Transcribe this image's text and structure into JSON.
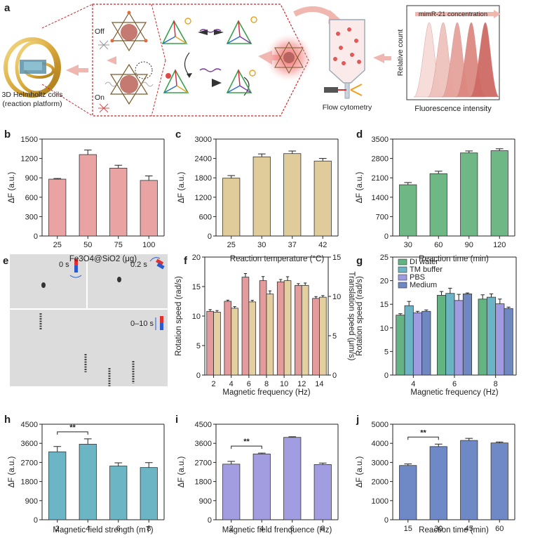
{
  "panel_a": {
    "label": "a",
    "coil_caption_1": "3D Helmholtz coils",
    "coil_caption_2": "(reaction platform)",
    "off_label": "Off",
    "on_label": "On",
    "flow_label": "Flow cytometry",
    "hist_arrow_label": "mimR-21 concentration",
    "hist_ylabel": "Relative count",
    "hist_xlabel": "Fluorescence intensity",
    "colors": {
      "dashed_red": "#c8282d",
      "arrow": "#f0b7b1",
      "hist": [
        "#f6dcd8",
        "#efc2bc",
        "#e6a39c",
        "#dc8880",
        "#cf6a65"
      ]
    }
  },
  "panel_e": {
    "label": "e",
    "t1": "0 s",
    "t2": "0.2 s",
    "t3": "0–10 s"
  },
  "chart_data": [
    {
      "id": "b",
      "type": "bar",
      "label": "b",
      "categories": [
        "25",
        "50",
        "75",
        "100"
      ],
      "values": [
        880,
        1260,
        1050,
        860
      ],
      "errors": [
        10,
        70,
        45,
        70
      ],
      "ylabel": "ΔF (a.u.)",
      "xlabel": "Fe3O4@SiO2 (μg)",
      "ylim": [
        0,
        1500
      ],
      "yticks": [
        0,
        300,
        600,
        900,
        1200,
        1500
      ],
      "color": "#e9a3a2"
    },
    {
      "id": "c",
      "type": "bar",
      "label": "c",
      "categories": [
        "25",
        "30",
        "37",
        "42"
      ],
      "values": [
        1790,
        2450,
        2550,
        2320
      ],
      "errors": [
        80,
        90,
        80,
        80
      ],
      "ylabel": "ΔF (a.u.)",
      "xlabel": "Reaction temperature (°C)",
      "ylim": [
        0,
        3000
      ],
      "yticks": [
        0,
        600,
        1200,
        1800,
        2400,
        3000
      ],
      "color": "#e0cc9a"
    },
    {
      "id": "d",
      "type": "bar",
      "label": "d",
      "categories": [
        "30",
        "60",
        "90",
        "120"
      ],
      "values": [
        1850,
        2250,
        3000,
        3080
      ],
      "errors": [
        80,
        90,
        70,
        70
      ],
      "ylabel": "ΔF (a.u.)",
      "xlabel": "Reaction time (min)",
      "ylim": [
        0,
        3500
      ],
      "yticks": [
        0,
        700,
        1400,
        2100,
        2800,
        3500
      ],
      "color": "#6fb886"
    },
    {
      "id": "f",
      "type": "bar",
      "label": "f",
      "categories": [
        "2",
        "4",
        "6",
        "8",
        "10",
        "12",
        "14"
      ],
      "series": [
        {
          "axis": "left",
          "values": [
            10.8,
            12.5,
            16.6,
            16.0,
            15.8,
            15.2,
            13.0
          ],
          "errors": [
            0.3,
            0.2,
            0.6,
            0.7,
            0.4,
            0.3,
            0.3
          ],
          "color": "#e49b9c"
        },
        {
          "axis": "right",
          "values": [
            8.0,
            8.5,
            9.3,
            10.3,
            12.0,
            11.4,
            9.9
          ],
          "errors": [
            0.2,
            0.2,
            0.2,
            0.4,
            0.5,
            0.3,
            0.2
          ],
          "color": "#e3cf9f"
        }
      ],
      "ylabel": "Rotation speed (rad/s)",
      "y2label": "Translation speed (μm/s)",
      "xlabel": "Magnetic frequency (Hz)",
      "ylim": [
        0,
        20
      ],
      "yticks": [
        0,
        5,
        10,
        15,
        20
      ],
      "y2lim": [
        0,
        15
      ],
      "y2ticks": [
        0,
        5,
        10,
        15
      ],
      "ylabel_color": "#e07d7e",
      "y2label_color": "#bca36b"
    },
    {
      "id": "g",
      "type": "bar",
      "label": "g",
      "categories": [
        "4",
        "6",
        "8"
      ],
      "series": [
        {
          "name": "DI water",
          "values": [
            12.7,
            16.9,
            16.1
          ],
          "errors": [
            0.3,
            0.8,
            0.9
          ],
          "color": "#63b383"
        },
        {
          "name": "TM buffer",
          "values": [
            14.7,
            17.3,
            16.5
          ],
          "errors": [
            0.9,
            1.1,
            0.7
          ],
          "color": "#6cb3c4"
        },
        {
          "name": "PBS",
          "values": [
            13.2,
            15.8,
            15.1
          ],
          "errors": [
            0.3,
            1.3,
            1.0
          ],
          "color": "#9f9be0"
        },
        {
          "name": "Medium",
          "values": [
            13.5,
            17.2,
            14.1
          ],
          "errors": [
            0.3,
            0.2,
            0.3
          ],
          "color": "#6f88c2"
        }
      ],
      "ylabel": "Rotation speed (rad/s)",
      "xlabel": "Magnetic frequency (Hz)",
      "ylim": [
        0,
        25
      ],
      "yticks": [
        0,
        5,
        10,
        15,
        20,
        25
      ],
      "legend_position": "top-left"
    },
    {
      "id": "h",
      "type": "bar",
      "label": "h",
      "categories": [
        "2",
        "4",
        "6",
        "8"
      ],
      "values": [
        3200,
        3560,
        2530,
        2460
      ],
      "errors": [
        250,
        250,
        150,
        230
      ],
      "ylabel": "ΔF (a.u.)",
      "xlabel": "Magnetic field strength (mT)",
      "ylim": [
        0,
        4500
      ],
      "yticks": [
        0,
        900,
        1800,
        2700,
        3600,
        4500
      ],
      "color": "#6bb5c5",
      "significance": {
        "from": 0,
        "to": 1,
        "label": "**"
      }
    },
    {
      "id": "i",
      "type": "bar",
      "label": "i",
      "categories": [
        "2",
        "4",
        "6",
        "8"
      ],
      "values": [
        2620,
        3100,
        3880,
        2600
      ],
      "errors": [
        130,
        40,
        30,
        70
      ],
      "ylabel": "ΔF (a.u.)",
      "xlabel": "Magnetic field frenquence (Hz)",
      "ylim": [
        0,
        4500
      ],
      "yticks": [
        0,
        900,
        1800,
        2700,
        3600,
        4500
      ],
      "color": "#a19de0",
      "significance": {
        "from": 0,
        "to": 1,
        "label": "**"
      }
    },
    {
      "id": "j",
      "type": "bar",
      "label": "j",
      "categories": [
        "15",
        "30",
        "45",
        "60"
      ],
      "values": [
        2840,
        3830,
        4150,
        4020
      ],
      "errors": [
        80,
        130,
        110,
        50
      ],
      "ylabel": "ΔF (a.u.)",
      "xlabel": "Reaction time (min)",
      "ylim": [
        0,
        5000
      ],
      "yticks": [
        0,
        1000,
        2000,
        3000,
        4000,
        5000
      ],
      "color": "#6f89c6",
      "significance": {
        "from": 0,
        "to": 1,
        "label": "**"
      }
    }
  ]
}
